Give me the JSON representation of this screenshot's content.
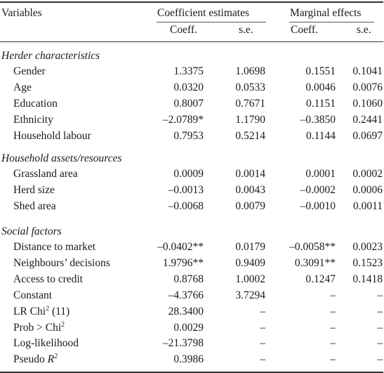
{
  "table": {
    "headers": {
      "variables": "Variables",
      "coef_group": "Coefficient estimates",
      "marg_group": "Marginal effects",
      "coeff": "Coeff.",
      "se": "s.e.",
      "coeff2": "Coeff.",
      "se2": "s.e."
    },
    "sections": [
      {
        "title": "Herder characteristics",
        "rows": [
          {
            "label": "Gender",
            "c1": "1.3375",
            "c2": "1.0698",
            "c3": "0.1551",
            "c4": "0.1041"
          },
          {
            "label": "Age",
            "c1": "0.0320",
            "c2": "0.0533",
            "c3": "0.0046",
            "c4": "0.0076"
          },
          {
            "label": "Education",
            "c1": "0.8007",
            "c2": "0.7671",
            "c3": "0.1151",
            "c4": "0.1060"
          },
          {
            "label": "Ethnicity",
            "c1": "–2.0789*",
            "c2": "1.1790",
            "c3": "–0.3850",
            "c4": "0.2441"
          },
          {
            "label": "Household labour",
            "c1": "0.7953",
            "c2": "0.5214",
            "c3": "0.1144",
            "c4": "0.0697"
          }
        ]
      },
      {
        "title": "Household assets/resources",
        "rows": [
          {
            "label": "Grassland area",
            "c1": "0.0009",
            "c2": "0.0014",
            "c3": "0.0001",
            "c4": "0.0002"
          },
          {
            "label": "Herd size",
            "c1": "–0.0013",
            "c2": "0.0043",
            "c3": "–0.0002",
            "c4": "0.0006"
          },
          {
            "label": "Shed area",
            "c1": "–0.0068",
            "c2": "0.0079",
            "c3": "–0.0010",
            "c4": "0.0011"
          }
        ]
      },
      {
        "title": "Social factors",
        "rows": [
          {
            "label": "Distance to market",
            "c1": "–0.0402**",
            "c2": "0.0179",
            "c3": "–0.0058**",
            "c4": "0.0023"
          },
          {
            "label": "Neighbours’ decisions",
            "c1": "1.9796**",
            "c2": "0.9409",
            "c3": "0.3091**",
            "c4": "0.1523"
          },
          {
            "label": "Access to credit",
            "c1": "0.8768",
            "c2": "1.0002",
            "c3": "0.1247",
            "c4": "0.1418"
          },
          {
            "label": "Constant",
            "c1": "–4.3766",
            "c2": "3.7294",
            "c3": "–",
            "c4": "–"
          },
          {
            "label": "LR Chi",
            "sup": "2",
            "suffix": " (11)",
            "c1": "28.3400",
            "c2": "–",
            "c3": "–",
            "c4": "–"
          },
          {
            "label": "Prob > Chi",
            "sup": "2",
            "suffix": "",
            "c1": "0.0029",
            "c2": "–",
            "c3": "–",
            "c4": "–"
          },
          {
            "label": "Log-likelihood",
            "c1": "–21.3798",
            "c2": "–",
            "c3": "–",
            "c4": "–"
          },
          {
            "label": "Pseudo ",
            "italic": "R",
            "sup": "2",
            "suffix": "",
            "c1": "0.3986",
            "c2": "–",
            "c3": "–",
            "c4": "–"
          }
        ]
      }
    ]
  }
}
